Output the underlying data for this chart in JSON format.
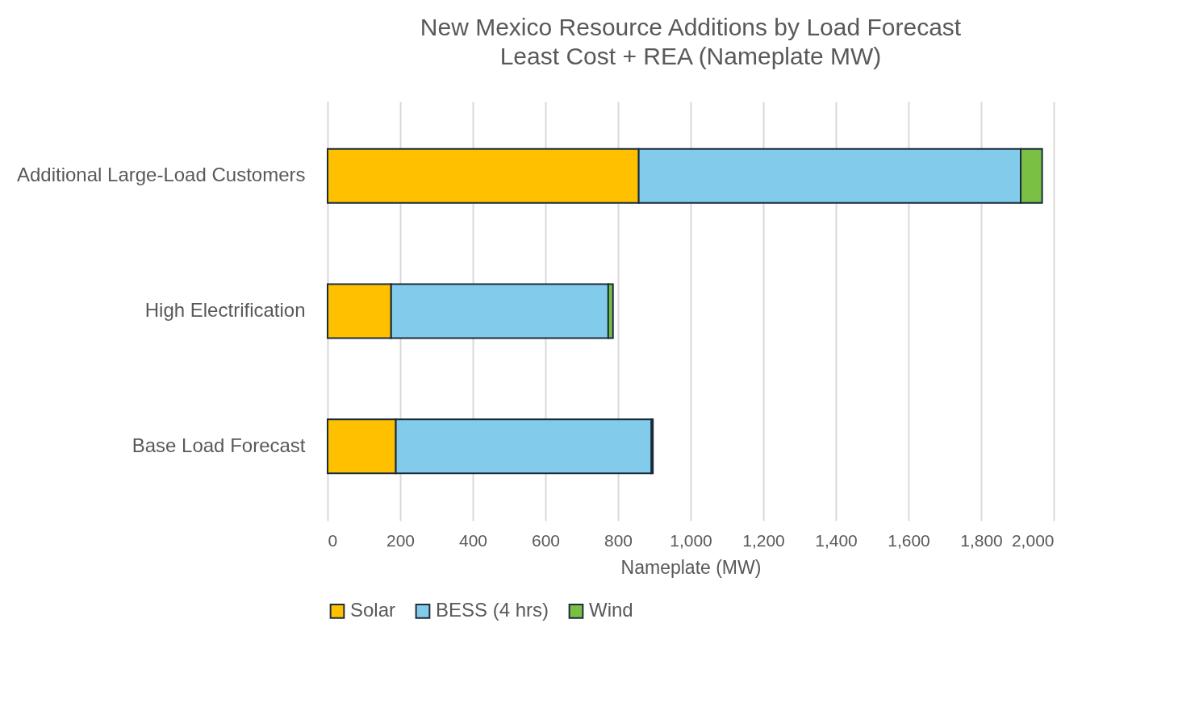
{
  "chart_data": {
    "type": "bar",
    "title": "New Mexico Resource Additions by Load Forecast",
    "subtitle": "Least Cost + REA (Nameplate MW)",
    "xlabel": "Nameplate (MW)",
    "orientation": "horizontal",
    "stacked": true,
    "categories": [
      "Additional Large-Load Customers",
      "High Electrification",
      "Base Load Forecast"
    ],
    "series": [
      {
        "name": "Solar",
        "color": "#ffc000",
        "values": [
          857,
          175,
          188
        ]
      },
      {
        "name": "BESS (4 hrs)",
        "color": "#83cbeb",
        "values": [
          1052,
          598,
          704
        ]
      },
      {
        "name": "Wind",
        "color": "#7ac143",
        "values": [
          59,
          13,
          4
        ]
      }
    ],
    "xlim": [
      0,
      2000
    ],
    "xticks": [
      0,
      200,
      400,
      600,
      800,
      {
        "value": 1000,
        "label": "1,000"
      },
      {
        "value": 1200,
        "label": "1,200"
      },
      {
        "value": 1400,
        "label": "1,400"
      },
      {
        "value": 1600,
        "label": "1,600"
      },
      {
        "value": 1800,
        "label": "1,800"
      },
      {
        "value": 2000,
        "label": "2,000"
      }
    ],
    "grid": "x",
    "legend": "bottom"
  }
}
